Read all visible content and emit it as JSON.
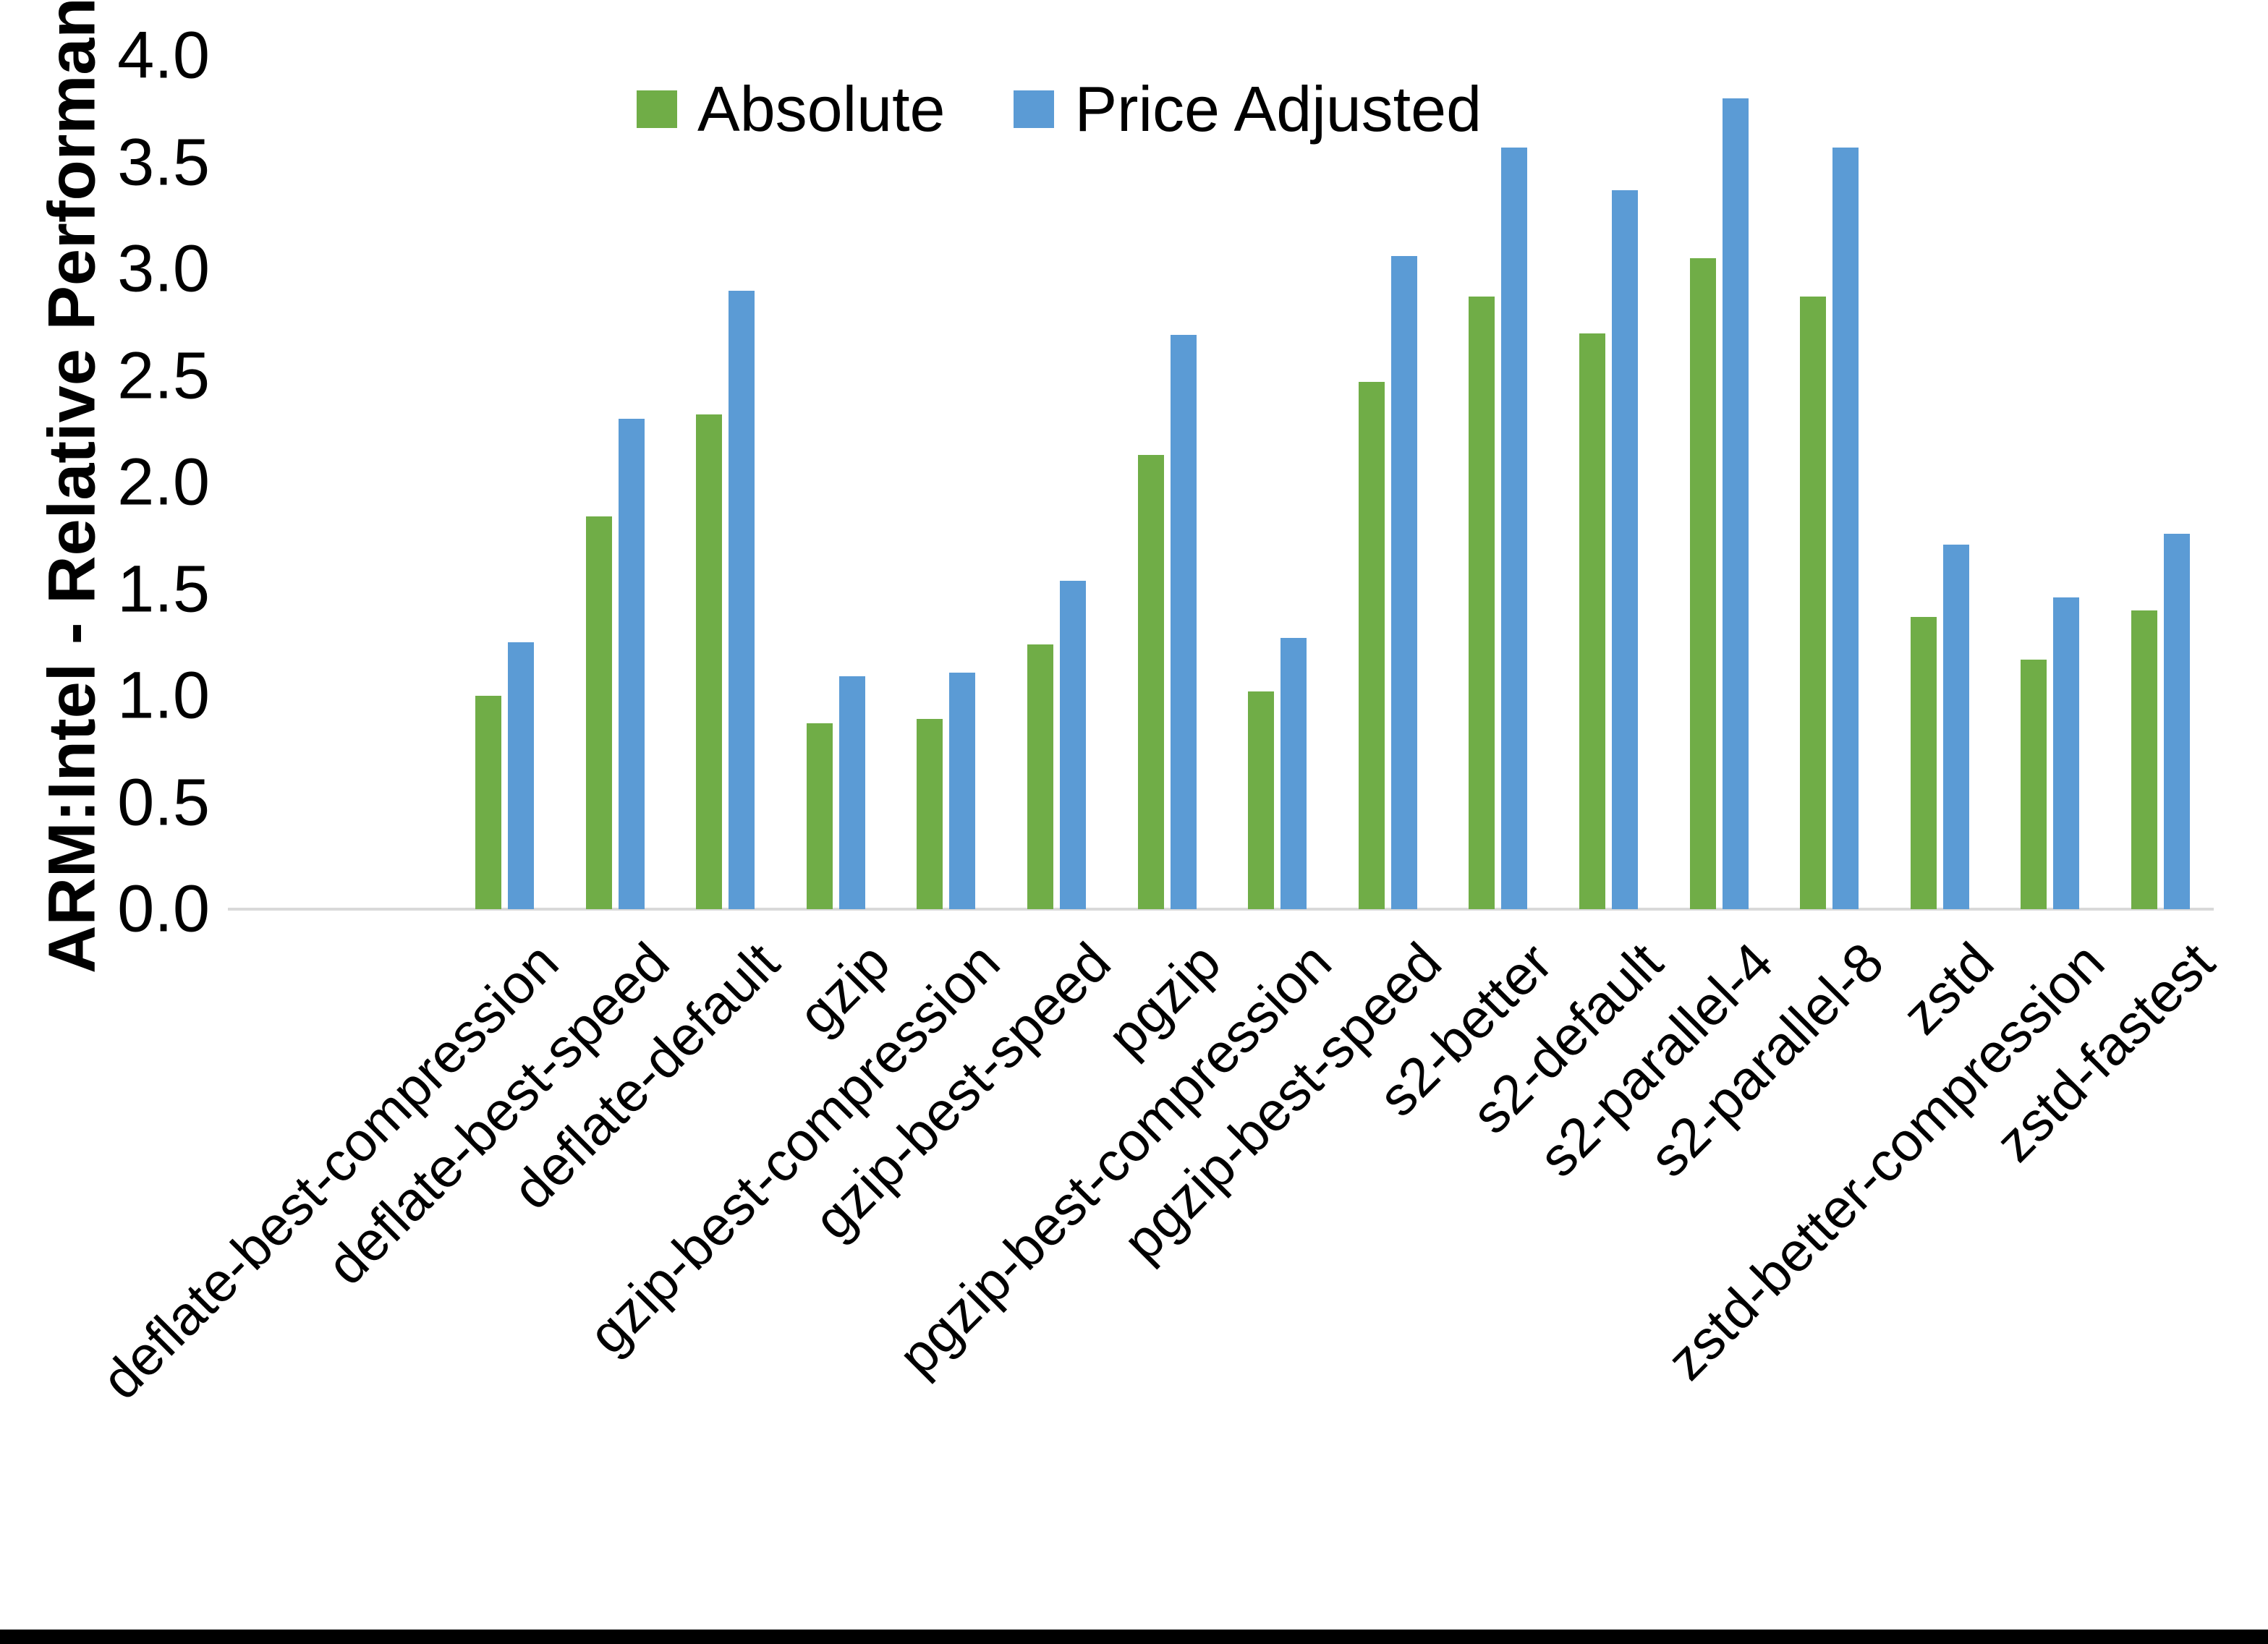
{
  "chart_data": {
    "type": "bar",
    "title": "",
    "xlabel": "",
    "ylabel": "ARM:Intel - Relative Performance",
    "ylim": [
      0.0,
      4.0
    ],
    "ytick_step": 0.5,
    "grid": false,
    "legend_position": "top-center",
    "categories": [
      "deflate-best-compression",
      "deflate-best-speed",
      "deflate-default",
      "gzip",
      "gzip-best-compression",
      "gzip-best-speed",
      "pgzip",
      "pgzip-best-compression",
      "pgzip-best-speed",
      "s2-better",
      "s2-default",
      "s2-parallel-4",
      "s2-parallel-8",
      "zstd",
      "zstd-better-compression",
      "zstd-fastest"
    ],
    "series": [
      {
        "name": "Absolute",
        "color": "#70AD47",
        "values": [
          1.0,
          1.84,
          2.32,
          0.87,
          0.89,
          1.24,
          2.13,
          1.02,
          2.47,
          2.87,
          2.7,
          3.05,
          2.87,
          1.37,
          1.17,
          1.4
        ]
      },
      {
        "name": "Price Adjusted",
        "color": "#5B9BD5",
        "values": [
          1.25,
          2.3,
          2.9,
          1.09,
          1.11,
          1.54,
          2.69,
          1.27,
          3.06,
          3.57,
          3.37,
          3.8,
          3.57,
          1.71,
          1.46,
          1.76
        ]
      }
    ]
  },
  "colors": {
    "background": "#FFFFFF",
    "axis_line": "#D9D9D9",
    "text": "#000000",
    "bottom_border": "#000000"
  }
}
